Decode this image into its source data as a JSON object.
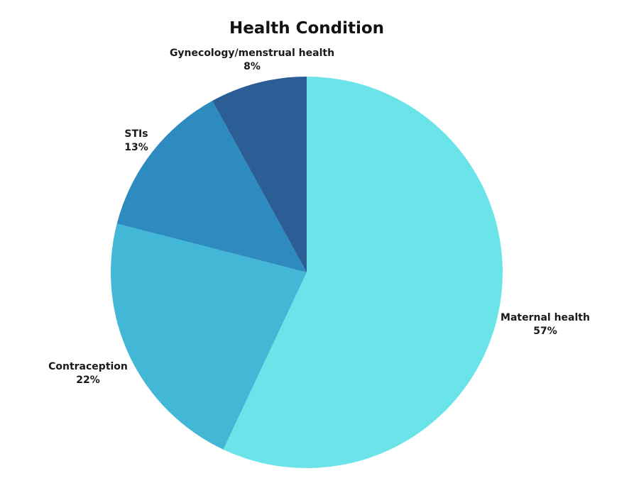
{
  "chart_data": {
    "type": "pie",
    "title": "Health Condition",
    "start_angle_deg": 0,
    "direction": "clockwise",
    "slices": [
      {
        "label": "Maternal health",
        "value": 57,
        "value_label": "57%",
        "color": "#6ae4e8"
      },
      {
        "label": "Contraception",
        "value": 22,
        "value_label": "22%",
        "color": "#42b7d6"
      },
      {
        "label": "STIs",
        "value": 13,
        "value_label": "13%",
        "color": "#2e8bbf"
      },
      {
        "label": "Gynecology/menstrual health",
        "value": 8,
        "value_label": "8%",
        "color": "#2c5e96"
      }
    ]
  }
}
